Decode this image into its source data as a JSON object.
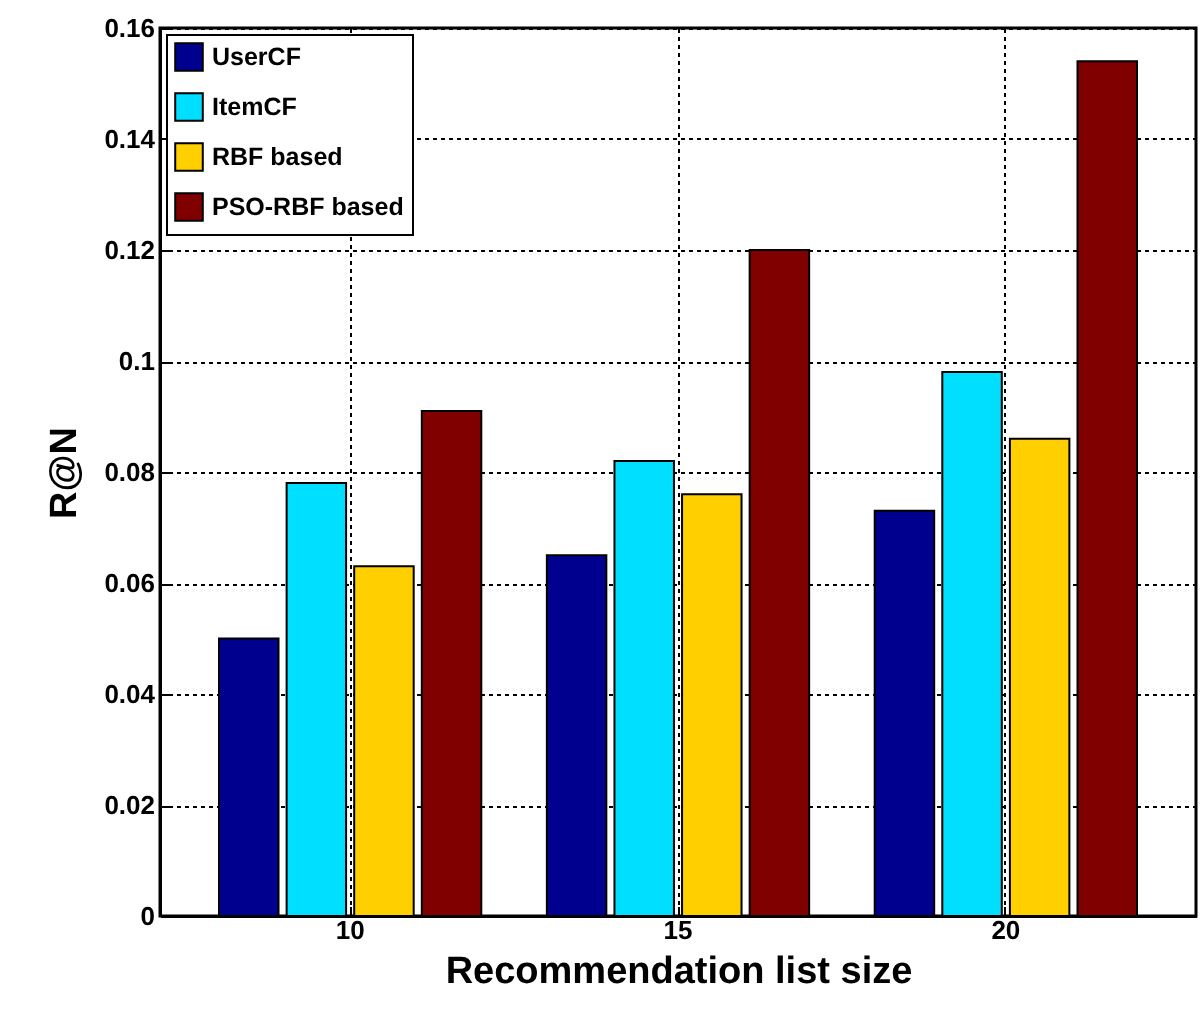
{
  "chart_data": {
    "type": "bar",
    "xlabel": "Recommendation list size",
    "ylabel": "R@N",
    "categories": [
      "10",
      "15",
      "20"
    ],
    "series": [
      {
        "name": "UserCF",
        "color": "#00008f",
        "values": [
          0.05,
          0.065,
          0.073
        ]
      },
      {
        "name": "ItemCF",
        "color": "#00dfff",
        "values": [
          0.078,
          0.082,
          0.098
        ]
      },
      {
        "name": "RBF based",
        "color": "#ffcf00",
        "values": [
          0.063,
          0.076,
          0.086
        ]
      },
      {
        "name": "PSO-RBF based",
        "color": "#800000",
        "values": [
          0.091,
          0.12,
          0.154
        ]
      }
    ],
    "ylim": [
      0,
      0.16
    ],
    "yticks": [
      0,
      0.02,
      0.04,
      0.06,
      0.08,
      {
        "value": 0.1,
        "label": "0.1"
      },
      0.12,
      0.14,
      0.16
    ],
    "grid": true,
    "legend": "top left"
  }
}
